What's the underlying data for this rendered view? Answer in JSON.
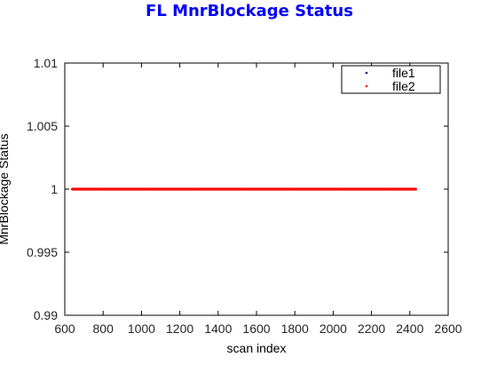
{
  "chart_data": {
    "type": "scatter",
    "title": "FL MnrBlockage Status",
    "xlabel": "scan index",
    "ylabel": "MnrBlockage Status",
    "xlim": [
      600,
      2600
    ],
    "ylim": [
      0.99,
      1.01
    ],
    "x_ticks": [
      "600",
      "800",
      "1000",
      "1200",
      "1400",
      "1600",
      "1800",
      "2000",
      "2200",
      "2400",
      "2600"
    ],
    "y_ticks": [
      "0.99",
      "0.995",
      "1",
      "1.005",
      "1.01"
    ],
    "grid": false,
    "legend_position": "top-right",
    "series": [
      {
        "name": "file1",
        "color": "#00007f",
        "x_range": [
          640,
          2430
        ],
        "value": 1
      },
      {
        "name": "file2",
        "color": "#ff0000",
        "x_range": [
          640,
          2430
        ],
        "value": 1
      }
    ]
  },
  "colors": {
    "title": "#0000ff",
    "axes": "#000000"
  }
}
